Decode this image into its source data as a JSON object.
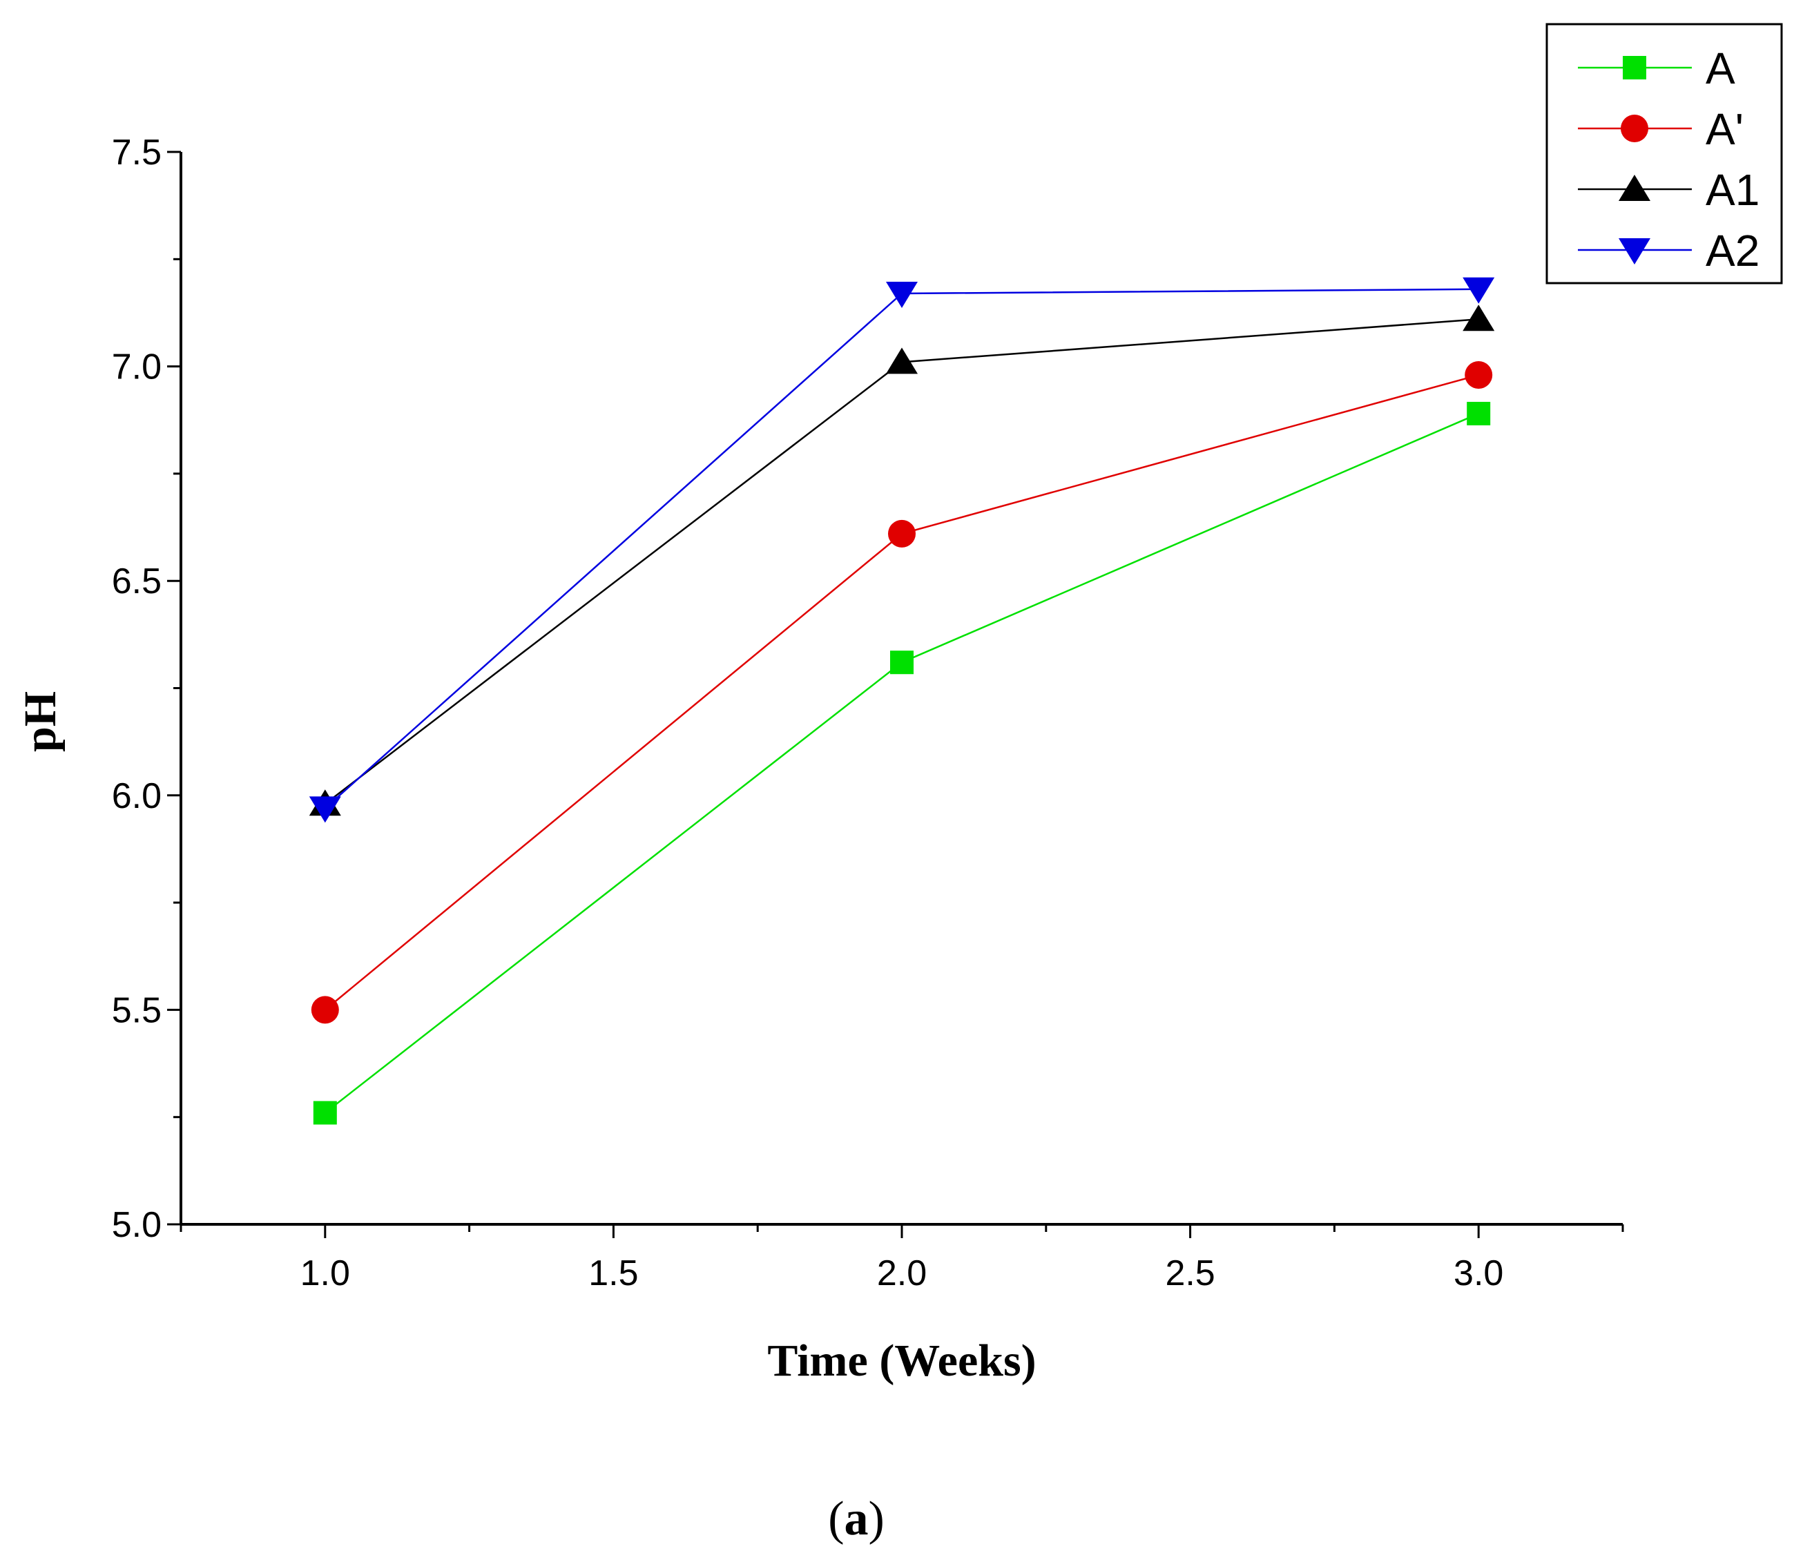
{
  "chart_data": {
    "type": "line",
    "title": "",
    "xlabel": "Time (Weeks)",
    "ylabel": "pH",
    "xlim": [
      0.75,
      3.25
    ],
    "ylim": [
      5.0,
      7.5
    ],
    "xticks": [
      1.0,
      1.5,
      2.0,
      2.5,
      3.0
    ],
    "xtick_labels": [
      "1.0",
      "1.5",
      "2.0",
      "2.5",
      "3.0"
    ],
    "yticks": [
      5.0,
      5.5,
      6.0,
      6.5,
      7.0,
      7.5
    ],
    "ytick_labels": [
      "5.0",
      "5.5",
      "6.0",
      "6.5",
      "7.0",
      "7.5"
    ],
    "grid": false,
    "legend_position": "top-right",
    "x": [
      1.0,
      2.0,
      3.0
    ],
    "series": [
      {
        "name": "A",
        "values": [
          5.26,
          6.31,
          6.89
        ],
        "color": "#00e000",
        "marker": "square"
      },
      {
        "name": "A'",
        "values": [
          5.5,
          6.61,
          6.98
        ],
        "color": "#e00000",
        "marker": "circle"
      },
      {
        "name": "A1",
        "values": [
          5.98,
          7.01,
          7.11
        ],
        "color": "#000000",
        "marker": "triangle-up"
      },
      {
        "name": "A2",
        "values": [
          5.97,
          7.17,
          7.18
        ],
        "color": "#0000e0",
        "marker": "triangle-down"
      }
    ]
  },
  "caption": {
    "open": "(",
    "letter": "a",
    "close": ")"
  }
}
